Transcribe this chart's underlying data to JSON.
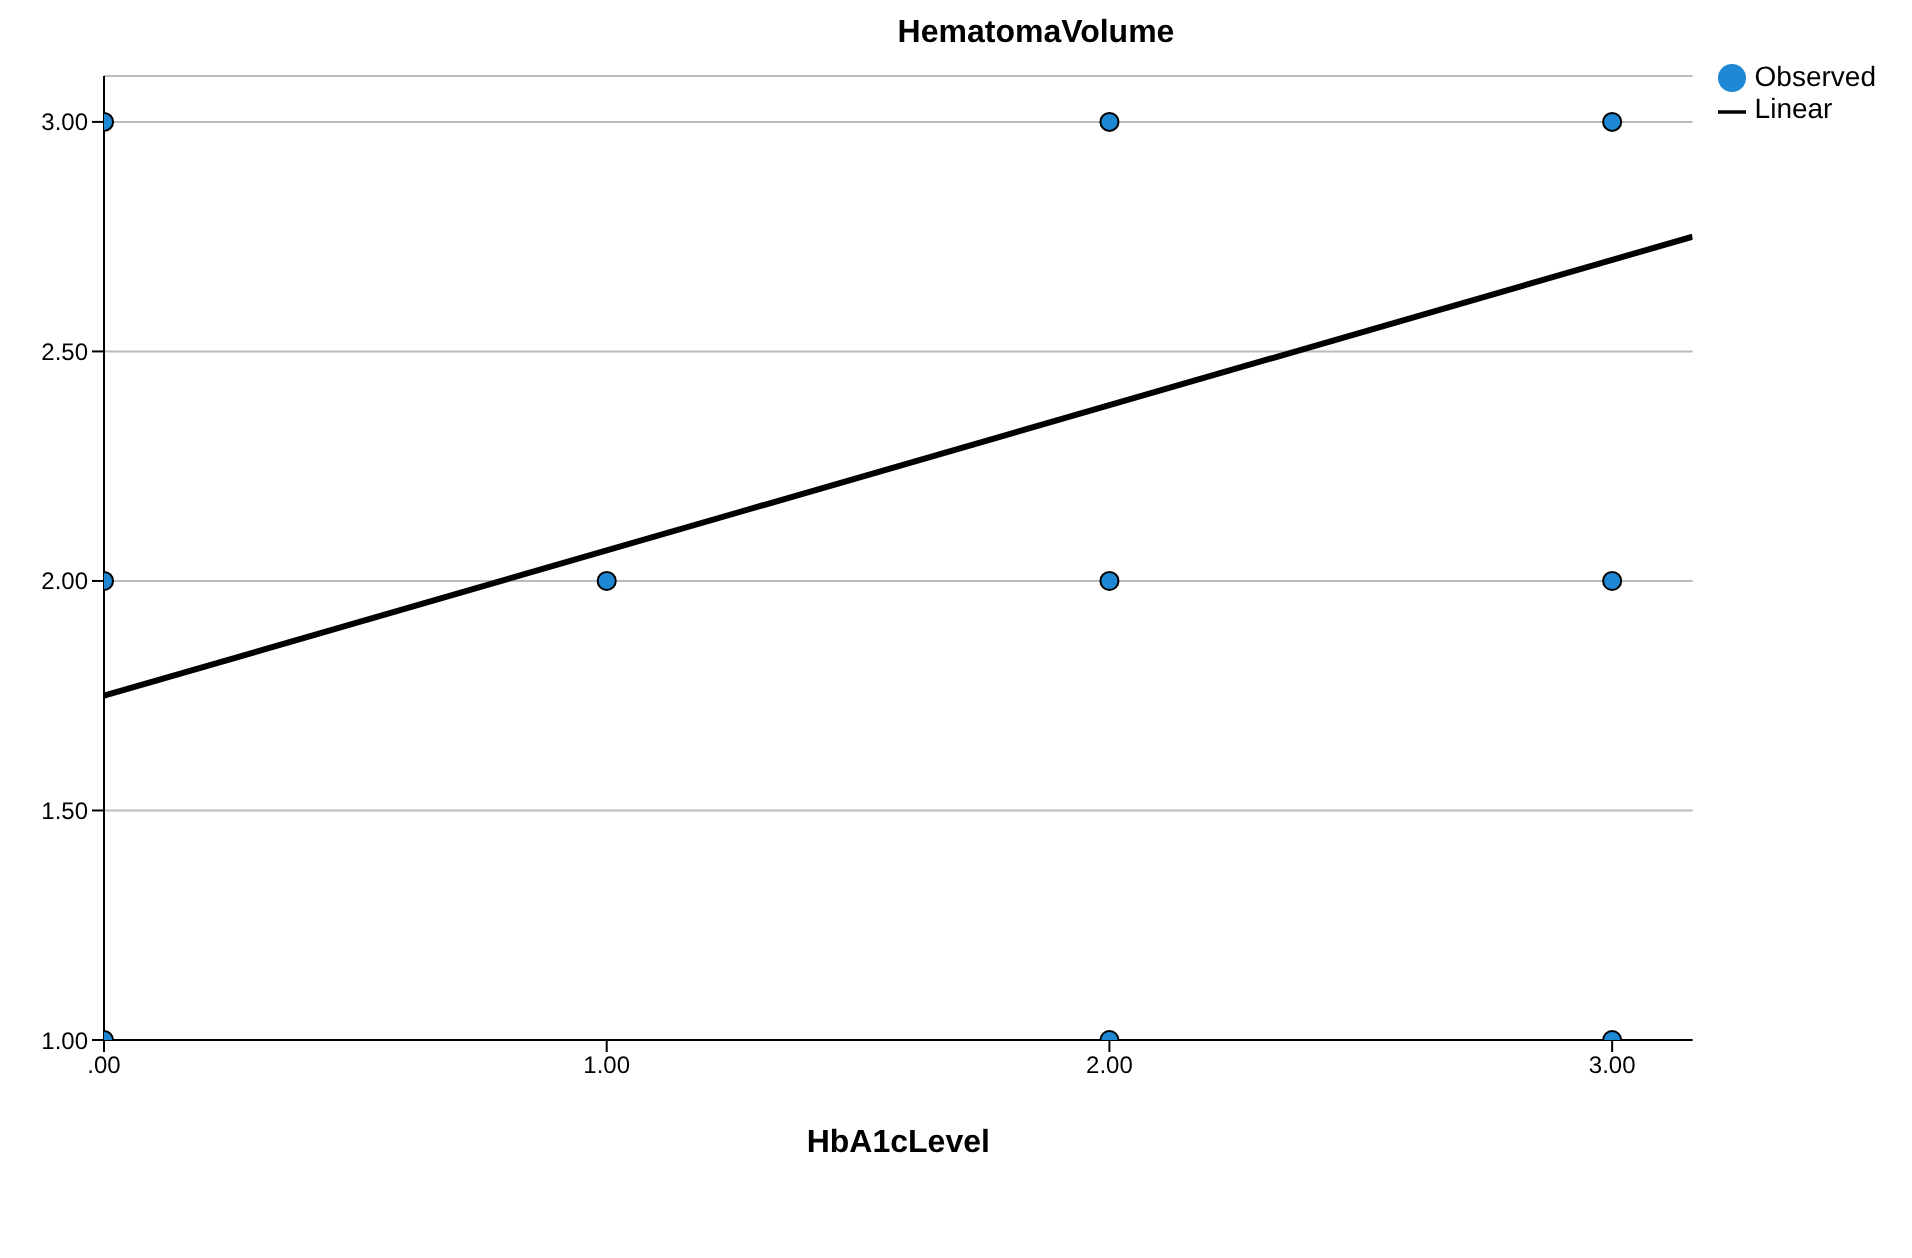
{
  "chart_data": {
    "type": "scatter",
    "title": "HematomaVolume",
    "xlabel": "HbA1cLevel",
    "series": [
      {
        "name": "Observed",
        "color": "#1e88d4",
        "marker": "circle",
        "x": [
          0,
          0,
          0,
          1,
          2,
          2,
          2,
          3,
          3,
          3
        ],
        "values": [
          3,
          2,
          1,
          2,
          3,
          2,
          1,
          3,
          2,
          1
        ]
      },
      {
        "name": "Linear",
        "type": "line",
        "color": "#000000",
        "x": [
          0,
          3.16
        ],
        "values": [
          1.75,
          2.75
        ]
      }
    ],
    "xlim": [
      0,
      3.16
    ],
    "xticks": [
      {
        "value": 0,
        "label": ".00"
      },
      {
        "value": 1,
        "label": "1.00"
      },
      {
        "value": 2,
        "label": "2.00"
      },
      {
        "value": 3,
        "label": "3.00"
      }
    ],
    "ylim": [
      1,
      3.1
    ],
    "yticks": [
      {
        "value": 1,
        "label": "1.00"
      },
      {
        "value": 1.5,
        "label": "1.50"
      },
      {
        "value": 2,
        "label": "2.00"
      },
      {
        "value": 2.5,
        "label": "2.50"
      },
      {
        "value": 3,
        "label": "3.00"
      }
    ],
    "grid": "y",
    "legend": "top right",
    "line_style": "solid"
  }
}
